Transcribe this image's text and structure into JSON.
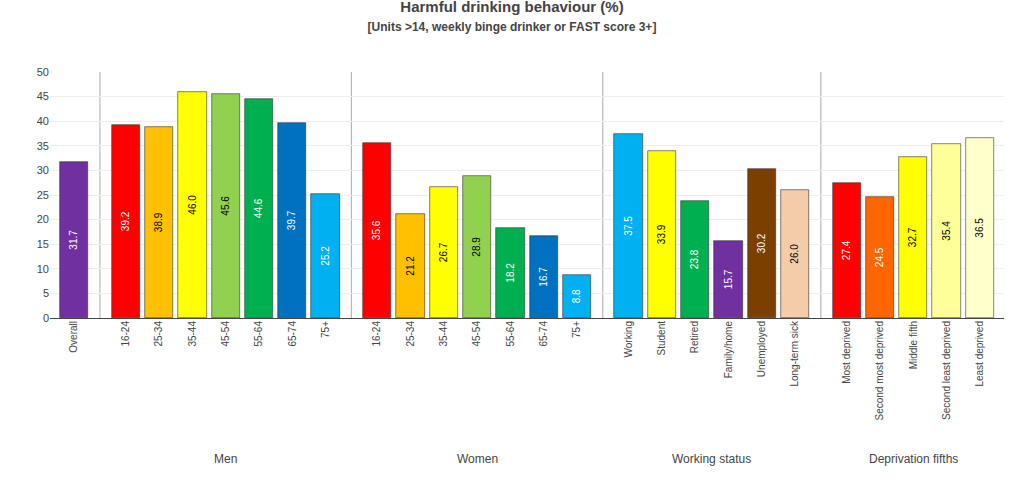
{
  "chart_data": {
    "type": "bar",
    "title": "Harmful drinking behaviour (%)",
    "subtitle": "[Units >14, weekly binge drinker or FAST score 3+]",
    "categories": [
      "Overall",
      "16-24",
      "25-34",
      "35-44",
      "45-54",
      "55-64",
      "65-74",
      "75+",
      "16-24",
      "25-34",
      "35-44",
      "45-54",
      "55-64",
      "65-74",
      "75+",
      "Working",
      "Student",
      "Retired",
      "Family/home",
      "Unemployed",
      "Long-term sick",
      "Most deprived",
      "Second most deprived",
      "Middle fifth",
      "Second least deprived",
      "Least deprived"
    ],
    "groups": [
      null,
      "Men",
      "Men",
      "Men",
      "Men",
      "Men",
      "Men",
      "Men",
      "Women",
      "Women",
      "Women",
      "Women",
      "Women",
      "Women",
      "Women",
      "Working status",
      "Working status",
      "Working status",
      "Working status",
      "Working status",
      "Working status",
      "Deprivation fifths",
      "Deprivation fifths",
      "Deprivation fifths",
      "Deprivation fifths",
      "Deprivation fifths"
    ],
    "values": [
      31.7,
      39.2,
      38.9,
      46.0,
      45.6,
      44.6,
      39.7,
      25.2,
      35.6,
      21.2,
      26.7,
      28.9,
      18.2,
      16.7,
      8.8,
      37.5,
      33.9,
      23.8,
      15.7,
      30.2,
      26.0,
      27.4,
      24.5,
      32.7,
      35.4,
      36.5
    ],
    "value_labels": [
      "31.7",
      "39.2",
      "38.9",
      "46.0",
      "45.6",
      "44.6",
      "39.7",
      "25.2",
      "35.6",
      "21.2",
      "26.7",
      "28.9",
      "18.2",
      "16.7",
      "8.8",
      "37.5",
      "33.9",
      "23.8",
      "15.7",
      "30.2",
      "26.0",
      "27.4",
      "24.5",
      "32.7",
      "35.4",
      "36.5"
    ],
    "colors": [
      "#7030A0",
      "#FF0000",
      "#FFC000",
      "#FFFF00",
      "#92D050",
      "#00B050",
      "#0070C0",
      "#00B0F0",
      "#FF0000",
      "#FFC000",
      "#FFFF00",
      "#92D050",
      "#00B050",
      "#0070C0",
      "#00B0F0",
      "#00B0F0",
      "#FFFF00",
      "#00B050",
      "#7030A0",
      "#7B3F00",
      "#F4CCAA",
      "#FF0000",
      "#FF6600",
      "#FFFF00",
      "#FFFF99",
      "#FFFFCC"
    ],
    "ylim": [
      0,
      50
    ],
    "yticks": [
      0,
      5,
      10,
      15,
      20,
      25,
      30,
      35,
      40,
      45,
      50
    ],
    "grid": true,
    "data_labels": true
  }
}
